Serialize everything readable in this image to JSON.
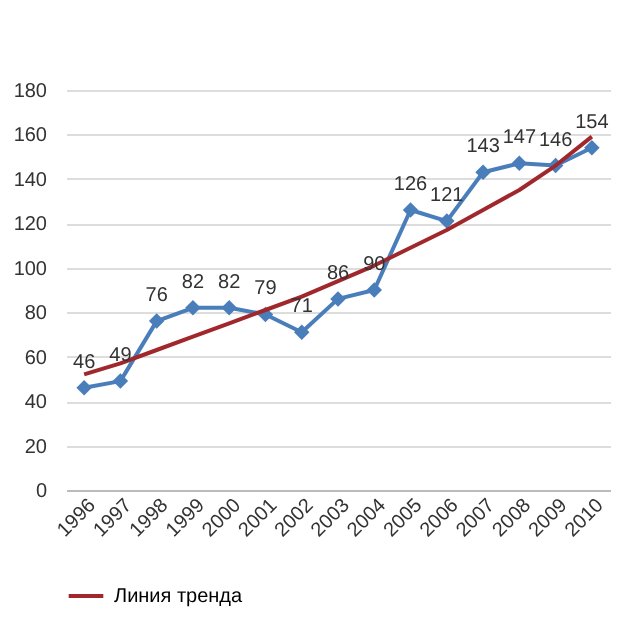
{
  "chart_data": {
    "type": "line",
    "categories": [
      "1996",
      "1997",
      "1998",
      "1999",
      "2000",
      "2001",
      "2002",
      "2003",
      "2004",
      "2005",
      "2006",
      "2007",
      "2008",
      "2009",
      "2010"
    ],
    "series": [
      {
        "color": "#4a7ebb",
        "marker": "diamond",
        "values": [
          46,
          49,
          76,
          82,
          82,
          79,
          71,
          86,
          90,
          126,
          121,
          143,
          147,
          146,
          154
        ],
        "value_labels": [
          "46",
          "49",
          "76",
          "82",
          "82",
          "79",
          "71",
          "86",
          "90",
          "126",
          "121",
          "143",
          "147",
          "146",
          "154"
        ]
      },
      {
        "name": "Линия тренда",
        "color": "#a0282d",
        "marker": "none",
        "values": [
          52,
          57,
          63,
          69,
          75,
          81,
          87,
          94,
          101,
          109,
          117,
          126,
          135,
          146,
          159
        ]
      }
    ],
    "ylim": [
      0,
      180
    ],
    "yticks": [
      0,
      20,
      40,
      60,
      80,
      100,
      120,
      140,
      160,
      180
    ],
    "grid": "y",
    "legend": "bottom",
    "line_style": "solid"
  }
}
